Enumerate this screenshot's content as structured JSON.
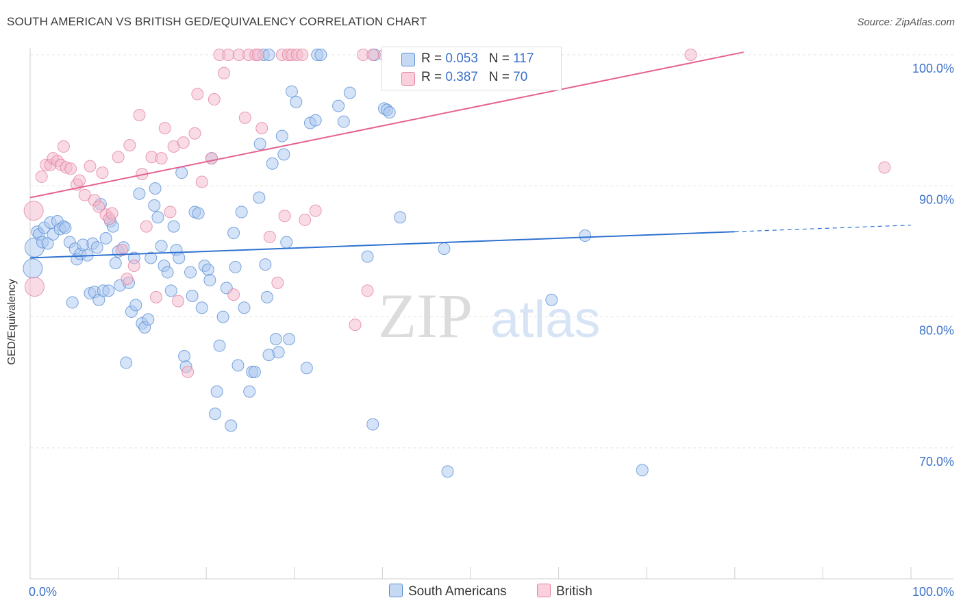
{
  "title": "SOUTH AMERICAN VS BRITISH GED/EQUIVALENCY CORRELATION CHART",
  "source": "Source: ZipAtlas.com",
  "legend": {
    "rows": [
      {
        "r_label": "R = ",
        "r_value": "0.053",
        "n_label": "N = ",
        "n_value": "117",
        "color": "#a9c8ef"
      },
      {
        "r_label": "R = ",
        "r_value": "0.387",
        "n_label": "N = ",
        "n_value": "70",
        "color": "#f4b8cb"
      }
    ]
  },
  "bottom_legend": {
    "south_americans": "South Americans",
    "british": "British"
  },
  "watermark": {
    "zip": "ZIP",
    "atlas": "atlas"
  },
  "chart_data": {
    "type": "scatter",
    "ylabel": "GED/Equivalency",
    "x_tick_labels": [
      "0.0%",
      "100.0%"
    ],
    "y_tick_labels": [
      "70.0%",
      "80.0%",
      "90.0%",
      "100.0%"
    ],
    "y_ticks": [
      70,
      80,
      90,
      100
    ],
    "xlim": [
      0,
      100
    ],
    "ylim": [
      60,
      101
    ],
    "grid": true,
    "series": [
      {
        "name": "South Americans",
        "color": "#a9c8ef",
        "stroke": "#5b8fd6",
        "trend": {
          "x0": 0,
          "y0": 84.5,
          "x1": 80,
          "y1": 86.5,
          "dash_to": 100,
          "dash_y": 87.0,
          "color": "#2f72d0"
        },
        "points": [
          [
            0.3,
            83.7
          ],
          [
            0.5,
            85.3
          ],
          [
            0.8,
            86.5
          ],
          [
            1.0,
            86.3
          ],
          [
            1.4,
            85.7
          ],
          [
            1.6,
            86.8
          ],
          [
            2.0,
            85.6
          ],
          [
            2.3,
            87.2
          ],
          [
            2.6,
            86.3
          ],
          [
            3.1,
            87.3
          ],
          [
            3.4,
            86.7
          ],
          [
            3.8,
            86.9
          ],
          [
            4.0,
            86.8
          ],
          [
            4.5,
            85.7
          ],
          [
            4.8,
            81.1
          ],
          [
            5.1,
            85.2
          ],
          [
            5.3,
            84.4
          ],
          [
            5.7,
            84.8
          ],
          [
            6.0,
            85.5
          ],
          [
            6.5,
            84.7
          ],
          [
            6.8,
            81.8
          ],
          [
            7.1,
            85.6
          ],
          [
            7.3,
            81.9
          ],
          [
            7.6,
            85.3
          ],
          [
            7.8,
            81.3
          ],
          [
            8.0,
            88.6
          ],
          [
            8.3,
            82.0
          ],
          [
            8.6,
            86.0
          ],
          [
            8.9,
            82.0
          ],
          [
            9.1,
            87.3
          ],
          [
            9.4,
            86.9
          ],
          [
            9.7,
            84.1
          ],
          [
            10.0,
            85.0
          ],
          [
            10.2,
            82.4
          ],
          [
            10.6,
            85.3
          ],
          [
            10.9,
            76.5
          ],
          [
            11.2,
            82.6
          ],
          [
            11.5,
            80.4
          ],
          [
            11.8,
            84.5
          ],
          [
            12.0,
            80.9
          ],
          [
            12.4,
            89.4
          ],
          [
            12.7,
            79.5
          ],
          [
            13.0,
            79.2
          ],
          [
            13.4,
            79.8
          ],
          [
            13.7,
            84.5
          ],
          [
            14.1,
            88.5
          ],
          [
            14.2,
            89.8
          ],
          [
            14.5,
            87.6
          ],
          [
            14.9,
            85.4
          ],
          [
            15.2,
            83.9
          ],
          [
            15.6,
            83.4
          ],
          [
            16.0,
            82.0
          ],
          [
            16.3,
            86.9
          ],
          [
            16.6,
            85.1
          ],
          [
            16.9,
            84.5
          ],
          [
            17.2,
            91.0
          ],
          [
            17.5,
            77.0
          ],
          [
            17.7,
            76.2
          ],
          [
            18.2,
            83.4
          ],
          [
            18.4,
            81.6
          ],
          [
            18.7,
            88.0
          ],
          [
            19.1,
            87.9
          ],
          [
            19.5,
            80.7
          ],
          [
            19.8,
            83.9
          ],
          [
            20.2,
            83.6
          ],
          [
            20.4,
            82.8
          ],
          [
            20.6,
            92.1
          ],
          [
            21.2,
            74.3
          ],
          [
            21.0,
            72.6
          ],
          [
            21.5,
            77.8
          ],
          [
            21.9,
            80.0
          ],
          [
            22.3,
            82.2
          ],
          [
            22.8,
            71.7
          ],
          [
            23.1,
            86.4
          ],
          [
            23.3,
            83.8
          ],
          [
            23.6,
            76.3
          ],
          [
            24.0,
            88.0
          ],
          [
            24.3,
            80.7
          ],
          [
            24.9,
            74.3
          ],
          [
            25.2,
            75.8
          ],
          [
            25.5,
            75.8
          ],
          [
            26.0,
            89.1
          ],
          [
            26.1,
            93.2
          ],
          [
            26.7,
            84.0
          ],
          [
            26.9,
            81.5
          ],
          [
            27.1,
            77.1
          ],
          [
            27.5,
            91.7
          ],
          [
            27.9,
            78.3
          ],
          [
            28.2,
            77.3
          ],
          [
            28.6,
            93.8
          ],
          [
            28.8,
            92.4
          ],
          [
            29.1,
            85.7
          ],
          [
            29.4,
            78.3
          ],
          [
            29.7,
            97.2
          ],
          [
            30.2,
            96.4
          ],
          [
            31.4,
            76.1
          ],
          [
            31.8,
            94.8
          ],
          [
            32.4,
            95.0
          ],
          [
            32.6,
            100.0
          ],
          [
            33.0,
            100.0
          ],
          [
            35.0,
            96.1
          ],
          [
            35.6,
            94.9
          ],
          [
            36.3,
            97.1
          ],
          [
            38.3,
            84.6
          ],
          [
            38.9,
            71.8
          ],
          [
            39.1,
            100.0
          ],
          [
            40.2,
            95.9
          ],
          [
            40.5,
            95.8
          ],
          [
            40.8,
            95.6
          ],
          [
            42.0,
            87.6
          ],
          [
            47.0,
            85.2
          ],
          [
            47.4,
            68.2
          ],
          [
            59.2,
            81.3
          ],
          [
            63.0,
            86.2
          ],
          [
            69.5,
            68.3
          ],
          [
            26.5,
            100.0
          ],
          [
            27.1,
            100.0
          ]
        ]
      },
      {
        "name": "British",
        "color": "#f4b8cb",
        "stroke": "#e4839f",
        "trend": {
          "x0": 0,
          "y0": 89.1,
          "x1": 81,
          "y1": 100.2,
          "color": "#e5628e"
        },
        "points": [
          [
            0.4,
            88.1
          ],
          [
            0.5,
            82.3
          ],
          [
            1.3,
            90.7
          ],
          [
            1.8,
            91.6
          ],
          [
            2.3,
            91.6
          ],
          [
            2.6,
            92.1
          ],
          [
            3.1,
            91.9
          ],
          [
            3.5,
            91.6
          ],
          [
            3.8,
            93.0
          ],
          [
            4.1,
            91.4
          ],
          [
            4.6,
            91.3
          ],
          [
            5.3,
            90.1
          ],
          [
            5.6,
            90.4
          ],
          [
            6.2,
            89.3
          ],
          [
            6.8,
            91.5
          ],
          [
            7.3,
            88.9
          ],
          [
            7.8,
            88.4
          ],
          [
            8.2,
            91.0
          ],
          [
            8.6,
            87.8
          ],
          [
            9.0,
            87.5
          ],
          [
            9.3,
            87.9
          ],
          [
            10.0,
            92.2
          ],
          [
            10.4,
            85.1
          ],
          [
            11.0,
            82.9
          ],
          [
            11.3,
            93.1
          ],
          [
            11.8,
            83.9
          ],
          [
            12.4,
            95.4
          ],
          [
            12.7,
            90.9
          ],
          [
            13.2,
            86.9
          ],
          [
            13.8,
            92.2
          ],
          [
            14.3,
            81.5
          ],
          [
            14.9,
            92.1
          ],
          [
            15.3,
            94.4
          ],
          [
            15.9,
            88.0
          ],
          [
            16.3,
            93.0
          ],
          [
            16.8,
            81.2
          ],
          [
            17.4,
            93.3
          ],
          [
            17.9,
            75.8
          ],
          [
            18.7,
            94.0
          ],
          [
            19.0,
            97.0
          ],
          [
            19.5,
            90.3
          ],
          [
            20.6,
            92.1
          ],
          [
            20.9,
            96.6
          ],
          [
            21.5,
            100.0
          ],
          [
            22.0,
            98.6
          ],
          [
            22.5,
            100.0
          ],
          [
            23.1,
            81.7
          ],
          [
            23.7,
            100.0
          ],
          [
            24.4,
            95.2
          ],
          [
            24.8,
            100.0
          ],
          [
            25.6,
            100.0
          ],
          [
            25.9,
            100.0
          ],
          [
            26.3,
            94.4
          ],
          [
            27.2,
            86.1
          ],
          [
            28.1,
            82.6
          ],
          [
            28.6,
            100.0
          ],
          [
            28.9,
            87.7
          ],
          [
            29.3,
            100.0
          ],
          [
            29.7,
            100.0
          ],
          [
            30.3,
            100.0
          ],
          [
            30.9,
            100.0
          ],
          [
            31.2,
            87.4
          ],
          [
            32.4,
            88.1
          ],
          [
            36.9,
            79.4
          ],
          [
            37.8,
            100.0
          ],
          [
            38.3,
            82.0
          ],
          [
            38.9,
            100.0
          ],
          [
            40.2,
            100.0
          ],
          [
            75.0,
            100.0
          ],
          [
            97.0,
            91.4
          ]
        ]
      }
    ]
  }
}
